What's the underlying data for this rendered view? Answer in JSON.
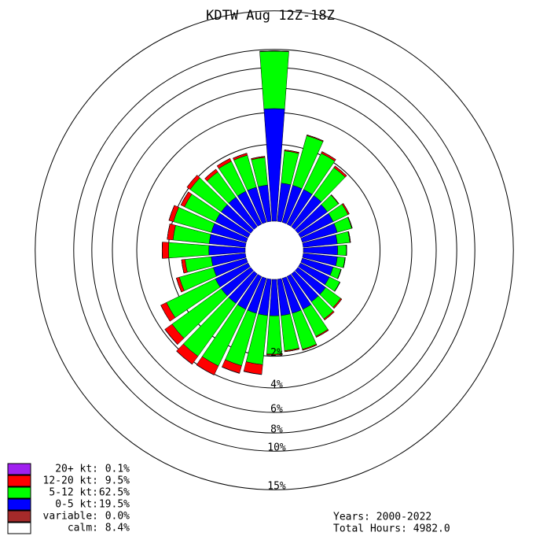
{
  "chart_data": {
    "type": "windrose",
    "title": "KDTW Aug 12Z-18Z",
    "directions": [
      0,
      10,
      20,
      30,
      40,
      50,
      60,
      70,
      80,
      90,
      100,
      110,
      120,
      130,
      140,
      150,
      160,
      170,
      180,
      190,
      200,
      210,
      220,
      230,
      240,
      250,
      260,
      270,
      280,
      290,
      300,
      310,
      320,
      330,
      340,
      350
    ],
    "rscale": "sqrt",
    "rticks": [
      {
        "value": 2,
        "label": "2%"
      },
      {
        "value": 4,
        "label": "4%"
      },
      {
        "value": 6,
        "label": "6%"
      },
      {
        "value": 8,
        "label": "8%"
      },
      {
        "value": 10,
        "label": "10%"
      },
      {
        "value": 15,
        "label": "15%"
      }
    ],
    "series": [
      {
        "name": "0-5 kt:",
        "color": "#0000ff",
        "share": 19.5,
        "share_label": "19.5%",
        "values": [
          4.3,
          0.5,
          0.5,
          0.5,
          0.5,
          0.45,
          0.45,
          0.45,
          0.4,
          0.4,
          0.4,
          0.35,
          0.35,
          0.4,
          0.4,
          0.45,
          0.45,
          0.45,
          0.45,
          0.45,
          0.45,
          0.45,
          0.45,
          0.45,
          0.45,
          0.4,
          0.4,
          0.45,
          0.45,
          0.45,
          0.45,
          0.45,
          0.45,
          0.45,
          0.45,
          0.45
        ]
      },
      {
        "name": "5-12 kt:",
        "color": "#00ff00",
        "share": 62.5,
        "share_label": "62.5%",
        "values": [
          5.5,
          1.2,
          2.25,
          1.6,
          1.3,
          0.4,
          0.5,
          0.45,
          0.35,
          0.23,
          0.2,
          0.2,
          0.3,
          0.55,
          0.65,
          1.05,
          1.4,
          1.3,
          1.45,
          2.05,
          2.35,
          2.9,
          3.05,
          2.75,
          2.35,
          1.25,
          0.85,
          1.55,
          1.35,
          1.5,
          1.25,
          1.45,
          1.1,
          1.2,
          1.2,
          0.95
        ]
      },
      {
        "name": "12-20 kt:",
        "color": "#ff0000",
        "share": 9.5,
        "share_label": "9.5%",
        "values": [
          0.05,
          0.05,
          0.05,
          0.1,
          0.1,
          0.02,
          0.05,
          0.02,
          0.02,
          0.01,
          0.01,
          0.01,
          0.01,
          0.05,
          0.05,
          0.05,
          0.05,
          0.05,
          0.05,
          0.6,
          0.5,
          0.7,
          0.7,
          0.6,
          0.4,
          0.15,
          0.15,
          0.35,
          0.3,
          0.25,
          0.2,
          0.2,
          0.15,
          0.15,
          0.1,
          0.05
        ]
      },
      {
        "name": "20+ kt:",
        "color": "#a020f0",
        "share": 0.1,
        "share_label": "0.1%",
        "values": [
          0,
          0,
          0,
          0,
          0,
          0,
          0,
          0,
          0,
          0,
          0,
          0,
          0,
          0,
          0,
          0,
          0,
          0,
          0,
          0.02,
          0.02,
          0.02,
          0.02,
          0.02,
          0,
          0,
          0,
          0,
          0,
          0,
          0,
          0,
          0,
          0,
          0,
          0
        ]
      }
    ],
    "other_entries": [
      {
        "name": "variable:",
        "color": "#a52a2a",
        "share": 0.0,
        "share_label": "0.0%"
      },
      {
        "name": "calm:",
        "color": "#ffffff",
        "share": 8.4,
        "share_label": "8.4%"
      }
    ],
    "annotations": [
      "Years: 2000-2022",
      "Total Hours: 4982.0"
    ]
  }
}
